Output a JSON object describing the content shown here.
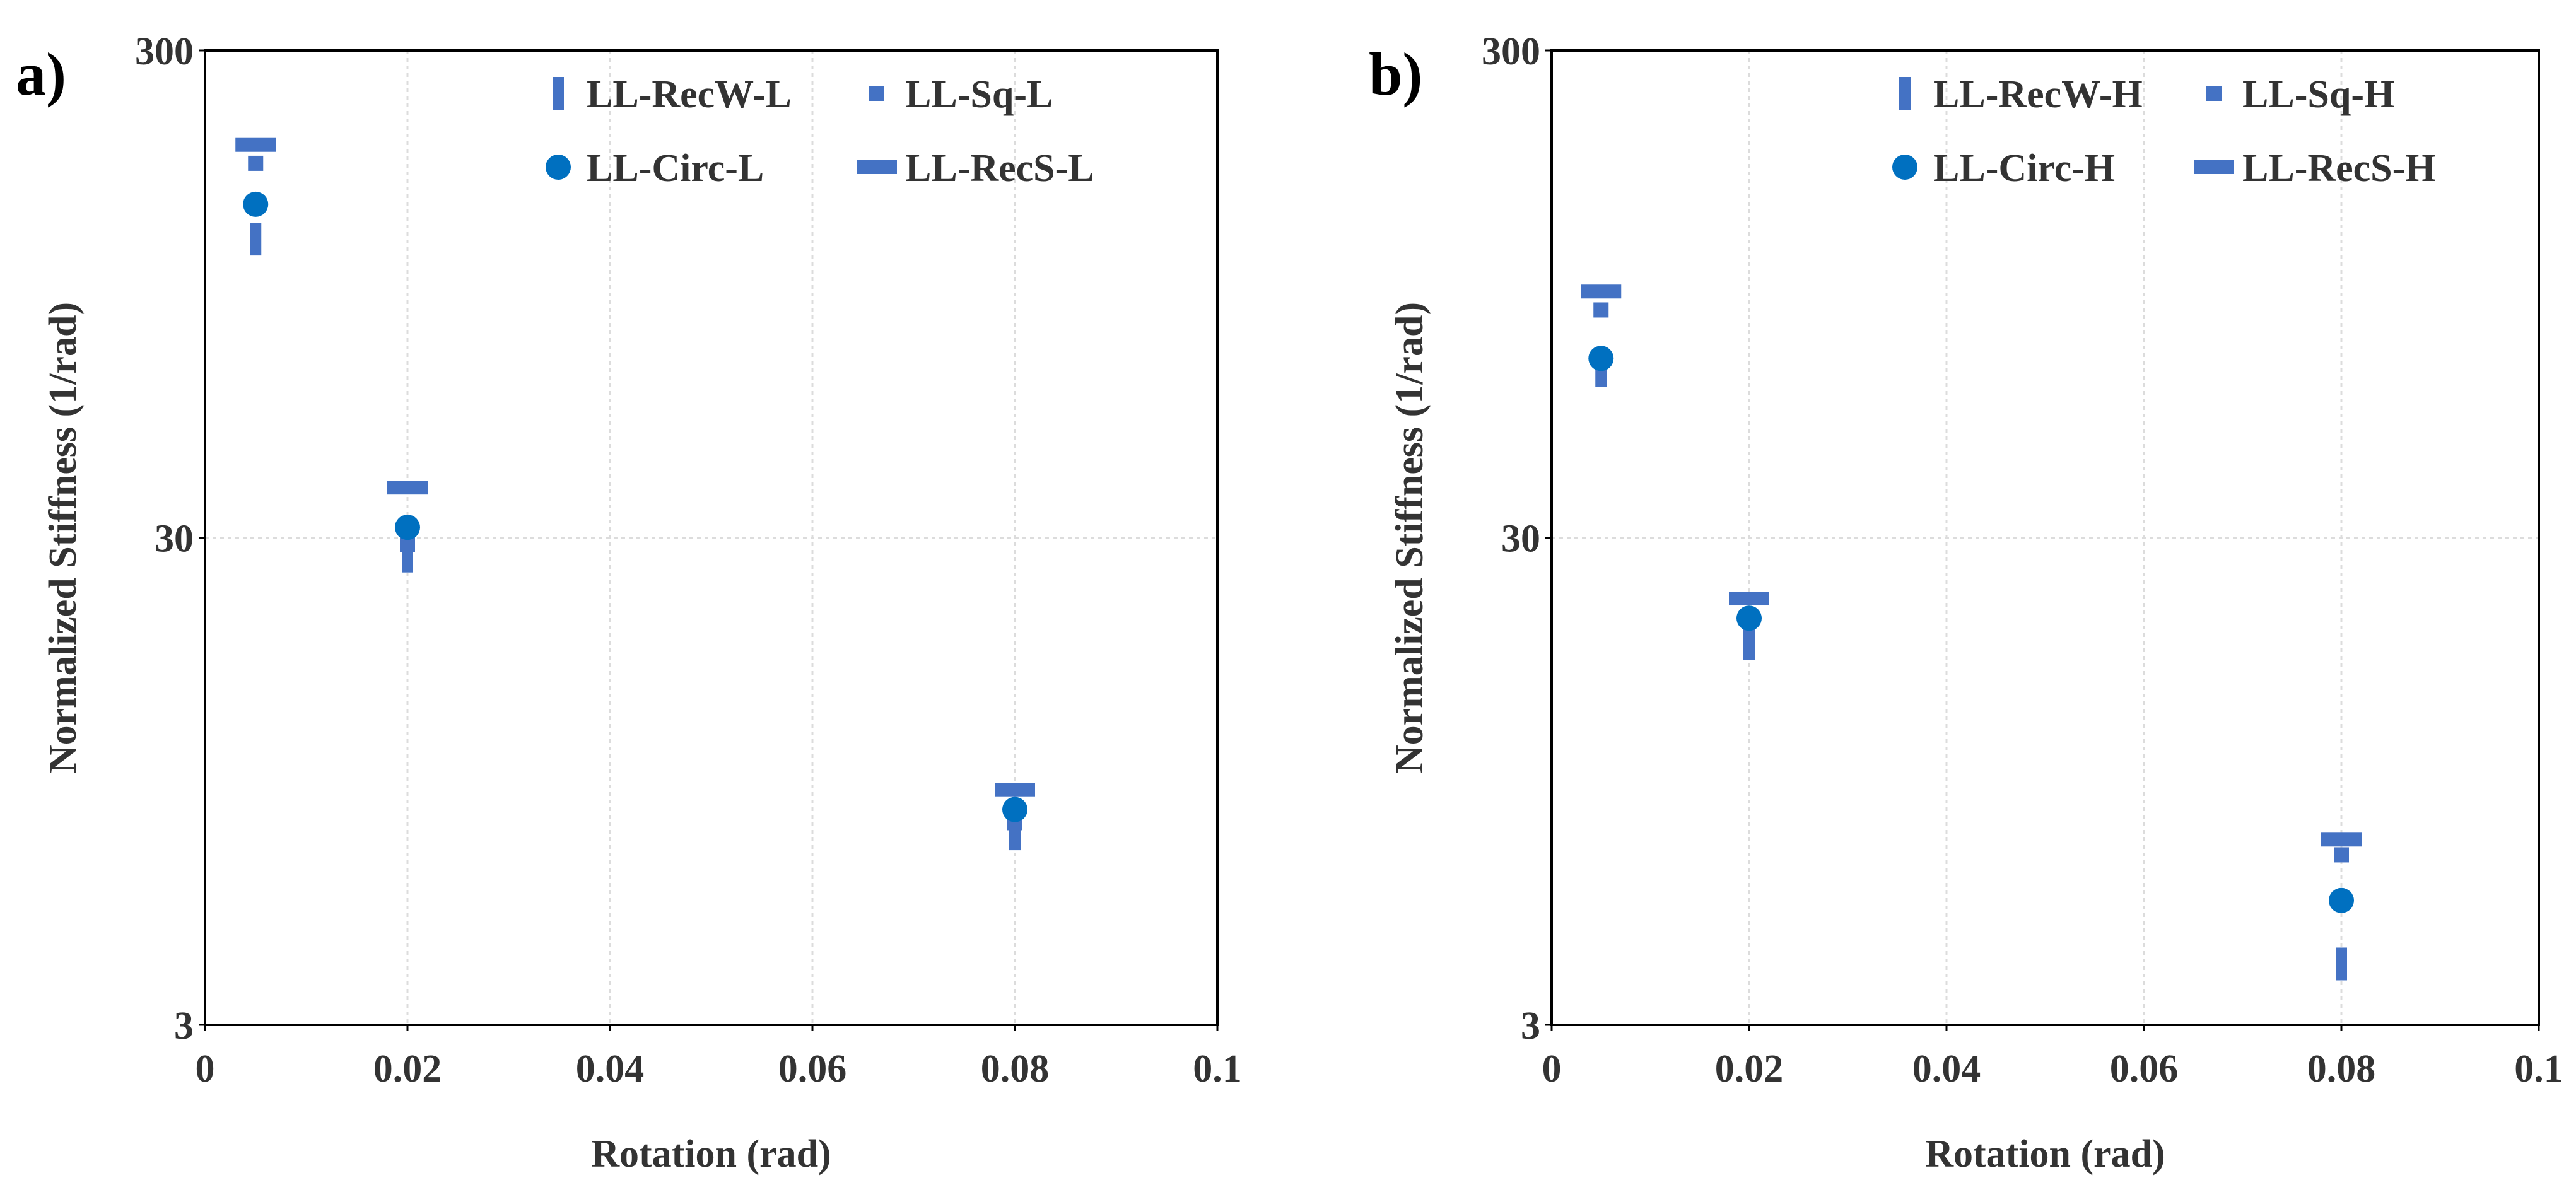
{
  "chart_data": [
    {
      "panel_label": "a)",
      "type": "scatter",
      "title": "",
      "xlabel": "Rotation (rad)",
      "ylabel": "Normalized Stiffness (1/rad)",
      "xlim": [
        0,
        0.1
      ],
      "ylim": [
        3,
        300
      ],
      "yscale": "log",
      "xticks": [
        0,
        0.02,
        0.04,
        0.06,
        0.08,
        0.1
      ],
      "xtick_labels": [
        "0",
        "0.02",
        "0.04",
        "0.06",
        "0.08",
        "0.1"
      ],
      "yticks": [
        3,
        30,
        300
      ],
      "ytick_labels": [
        "3",
        "30",
        "300"
      ],
      "grid": true,
      "legend_position": "top-right",
      "series": [
        {
          "name": "LL-RecW-L",
          "marker": "vbar",
          "x": [
            0.005,
            0.02,
            0.08
          ],
          "y": [
            123,
            27.5,
            7.4
          ]
        },
        {
          "name": "LL-Sq-L",
          "marker": "square",
          "x": [
            0.005,
            0.02,
            0.08
          ],
          "y": [
            176,
            29.0,
            7.8
          ]
        },
        {
          "name": "LL-Circ-L",
          "marker": "circle",
          "x": [
            0.005,
            0.02,
            0.08
          ],
          "y": [
            145,
            31.5,
            8.3
          ]
        },
        {
          "name": "LL-RecS-L",
          "marker": "hbar",
          "x": [
            0.005,
            0.02,
            0.08
          ],
          "y": [
            192,
            38.0,
            9.1
          ]
        }
      ]
    },
    {
      "panel_label": "b)",
      "type": "scatter",
      "title": "",
      "xlabel": "Rotation (rad)",
      "ylabel": "Normalized Stiffness (1/rad)",
      "xlim": [
        0,
        0.1
      ],
      "ylim": [
        3,
        300
      ],
      "yscale": "log",
      "xticks": [
        0,
        0.02,
        0.04,
        0.06,
        0.08,
        0.1
      ],
      "xtick_labels": [
        "0",
        "0.02",
        "0.04",
        "0.06",
        "0.08",
        "0.1"
      ],
      "yticks": [
        3,
        30,
        300
      ],
      "ytick_labels": [
        "3",
        "30",
        "300"
      ],
      "grid": true,
      "legend_position": "top-right",
      "series": [
        {
          "name": "LL-RecW-H",
          "marker": "vbar",
          "x": [
            0.005,
            0.02,
            0.08
          ],
          "y": [
            66,
            18.2,
            4.0
          ]
        },
        {
          "name": "LL-Sq-H",
          "marker": "square",
          "x": [
            0.005,
            0.02,
            0.08
          ],
          "y": [
            88,
            20.5,
            6.7
          ]
        },
        {
          "name": "LL-Circ-H",
          "marker": "circle",
          "x": [
            0.005,
            0.02,
            0.08
          ],
          "y": [
            70,
            20.5,
            5.4
          ]
        },
        {
          "name": "LL-RecS-H",
          "marker": "hbar",
          "x": [
            0.005,
            0.02,
            0.08
          ],
          "y": [
            96,
            22.5,
            7.2
          ]
        }
      ]
    }
  ],
  "colors": {
    "series_rect": "#4472c4",
    "series_circle": "#0070c0",
    "grid": "#dcdcdc",
    "axis": "#000000",
    "text": "#333333"
  }
}
